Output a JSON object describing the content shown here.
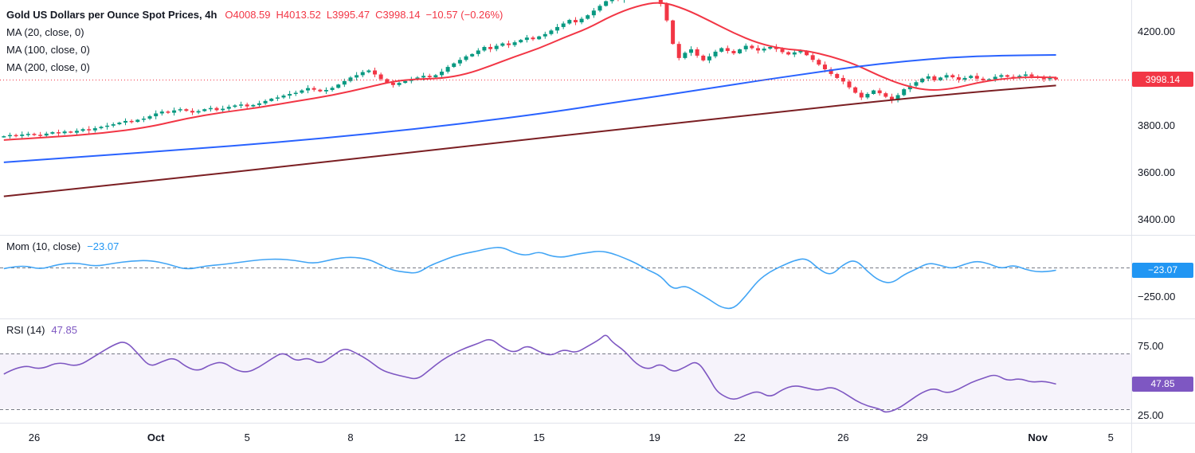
{
  "header": {
    "title": "Gold US Dollars per Ounce Spot Prices, 4h",
    "ohlc": {
      "open": "O4008.59",
      "high": "H4013.52",
      "low": "L3995.47",
      "close": "C3998.14",
      "change": "−10.57 (−0.26%)"
    },
    "ma_labels": [
      "MA (20, close, 0)",
      "MA (100, close, 0)",
      "MA (200, close, 0)"
    ]
  },
  "momentum_legend": {
    "label": "Mom (10, close)",
    "value": "−23.07"
  },
  "rsi_legend": {
    "label": "RSI (14)",
    "value": "47.85"
  },
  "badges": {
    "price": "3998.14",
    "momentum": "−23.07",
    "rsi": "47.85"
  },
  "colors": {
    "up": "#089981",
    "down": "#f23645",
    "ma20": "#f23645",
    "ma100": "#2962ff",
    "ma200": "#7b1f23",
    "mom": "#42a5f5",
    "rsi": "#7e57c2",
    "band_fill": "rgba(126,87,194,0.07)",
    "dashed": "#787b86",
    "separator": "#e0e3eb",
    "axis_text": "#131722",
    "last_price_line": "#f23645"
  },
  "time_axis": {
    "labels": [
      {
        "t": "26",
        "i": 5
      },
      {
        "t": "Oct",
        "i": 25,
        "strong": true
      },
      {
        "t": "5",
        "i": 40
      },
      {
        "t": "8",
        "i": 57
      },
      {
        "t": "12",
        "i": 75
      },
      {
        "t": "15",
        "i": 88
      },
      {
        "t": "19",
        "i": 107
      },
      {
        "t": "22",
        "i": 121
      },
      {
        "t": "26",
        "i": 138
      },
      {
        "t": "29",
        "i": 151
      },
      {
        "t": "Nov",
        "i": 170,
        "strong": true
      },
      {
        "t": "5",
        "i": 182
      }
    ]
  },
  "chart_data": [
    {
      "type": "candlestick",
      "panel": "price",
      "title": "Gold US Dollars per Ounce Spot Prices, 4h",
      "timeframe": "4h",
      "ohlc_last": {
        "o": 4008.59,
        "h": 4013.52,
        "l": 3995.47,
        "c": 3998.14,
        "change": -10.57,
        "change_pct": -0.26
      },
      "ylim": [
        3336,
        4336
      ],
      "y_ticks": [
        {
          "v": 4200,
          "label": "4200.00"
        },
        {
          "v": 3800,
          "label": "3800.00"
        },
        {
          "v": 3600,
          "label": "3600.00"
        },
        {
          "v": 3400,
          "label": "3400.00"
        }
      ],
      "last_price": 3998.14,
      "closes": [
        3756,
        3761,
        3757,
        3763,
        3766,
        3762,
        3759,
        3767,
        3773,
        3769,
        3776,
        3771,
        3779,
        3786,
        3781,
        3790,
        3796,
        3801,
        3807,
        3814,
        3821,
        3817,
        3826,
        3831,
        3841,
        3853,
        3861,
        3856,
        3866,
        3871,
        3864,
        3857,
        3863,
        3871,
        3876,
        3867,
        3873,
        3881,
        3887,
        3891,
        3883,
        3889,
        3896,
        3906,
        3916,
        3921,
        3929,
        3936,
        3941,
        3951,
        3961,
        3954,
        3947,
        3953,
        3962,
        3976,
        3991,
        4006,
        4016,
        4029,
        4036,
        4019,
        3999,
        3984,
        3974,
        3983,
        3991,
        3999,
        4006,
        4013,
        4007,
        4016,
        4031,
        4051,
        4066,
        4081,
        4096,
        4106,
        4121,
        4136,
        4127,
        4141,
        4151,
        4144,
        4156,
        4166,
        4176,
        4169,
        4181,
        4191,
        4206,
        4221,
        4236,
        4251,
        4241,
        4256,
        4271,
        4291,
        4311,
        4331,
        4346,
        4337,
        4351,
        4366,
        4376,
        4381,
        4359,
        4341,
        4319,
        4249,
        4149,
        4089,
        4111,
        4126,
        4099,
        4079,
        4096,
        4116,
        4131,
        4119,
        4109,
        4126,
        4141,
        4131,
        4121,
        4129,
        4136,
        4127,
        4114,
        4104,
        4113,
        4119,
        4101,
        4081,
        4061,
        4041,
        4021,
        4004,
        3989,
        3964,
        3941,
        3921,
        3936,
        3951,
        3939,
        3924,
        3909,
        3931,
        3956,
        3971,
        3986,
        4001,
        4011,
        3994,
        4006,
        4016,
        4007,
        3997,
        4004,
        4013,
        4001,
        3994,
        3999,
        4009,
        4016,
        4009,
        4004,
        4013,
        4019,
        4011,
        4004,
        3999,
        4006,
        3998.14
      ],
      "overlays": [
        {
          "name": "MA (20, close, 0)",
          "period": 20,
          "color_key": "ma20",
          "points": [
            [
              0,
              3740
            ],
            [
              8,
              3752
            ],
            [
              16,
              3768
            ],
            [
              24,
              3795
            ],
            [
              30,
              3832
            ],
            [
              36,
              3858
            ],
            [
              42,
              3878
            ],
            [
              48,
              3905
            ],
            [
              54,
              3930
            ],
            [
              60,
              3965
            ],
            [
              64,
              3990
            ],
            [
              68,
              4000
            ],
            [
              72,
              4002
            ],
            [
              76,
              4020
            ],
            [
              80,
              4055
            ],
            [
              84,
              4095
            ],
            [
              88,
              4130
            ],
            [
              92,
              4175
            ],
            [
              96,
              4215
            ],
            [
              100,
              4270
            ],
            [
              104,
              4310
            ],
            [
              108,
              4330
            ],
            [
              112,
              4298
            ],
            [
              116,
              4248
            ],
            [
              120,
              4195
            ],
            [
              124,
              4152
            ],
            [
              128,
              4128
            ],
            [
              132,
              4120
            ],
            [
              136,
              4096
            ],
            [
              140,
              4062
            ],
            [
              144,
              4012
            ],
            [
              148,
              3972
            ],
            [
              152,
              3950
            ],
            [
              156,
              3958
            ],
            [
              160,
              3984
            ],
            [
              164,
              4000
            ],
            [
              168,
              4008
            ],
            [
              173,
              4006
            ]
          ]
        },
        {
          "name": "MA (100, close, 0)",
          "period": 100,
          "color_key": "ma100",
          "points": [
            [
              0,
              3645
            ],
            [
              15,
              3672
            ],
            [
              30,
              3700
            ],
            [
              45,
              3730
            ],
            [
              60,
              3766
            ],
            [
              75,
              3808
            ],
            [
              90,
              3858
            ],
            [
              100,
              3898
            ],
            [
              108,
              3928
            ],
            [
              116,
              3960
            ],
            [
              124,
              3992
            ],
            [
              132,
              4022
            ],
            [
              140,
              4052
            ],
            [
              148,
              4075
            ],
            [
              156,
              4092
            ],
            [
              164,
              4100
            ],
            [
              173,
              4102
            ]
          ]
        },
        {
          "name": "MA (200, close, 0)",
          "period": 200,
          "color_key": "ma200",
          "points": [
            [
              0,
              3500
            ],
            [
              25,
              3568
            ],
            [
              50,
              3638
            ],
            [
              75,
              3710
            ],
            [
              100,
              3782
            ],
            [
              125,
              3852
            ],
            [
              145,
              3908
            ],
            [
              160,
              3945
            ],
            [
              173,
              3972
            ]
          ]
        }
      ]
    },
    {
      "type": "line",
      "panel": "momentum",
      "name": "Mom (10, close)",
      "value": -23.07,
      "color_key": "mom",
      "ylim": [
        -430,
        275
      ],
      "zero_line": 0,
      "y_ticks": [
        {
          "v": -250,
          "label": "−250.00"
        }
      ],
      "points": [
        [
          0,
          -10
        ],
        [
          3,
          22
        ],
        [
          6,
          -18
        ],
        [
          9,
          28
        ],
        [
          12,
          40
        ],
        [
          15,
          8
        ],
        [
          18,
          35
        ],
        [
          21,
          55
        ],
        [
          24,
          60
        ],
        [
          27,
          30
        ],
        [
          30,
          -20
        ],
        [
          33,
          12
        ],
        [
          36,
          25
        ],
        [
          39,
          45
        ],
        [
          42,
          65
        ],
        [
          45,
          72
        ],
        [
          48,
          60
        ],
        [
          51,
          30
        ],
        [
          54,
          70
        ],
        [
          57,
          90
        ],
        [
          60,
          70
        ],
        [
          62,
          20
        ],
        [
          64,
          -25
        ],
        [
          66,
          -40
        ],
        [
          68,
          -50
        ],
        [
          70,
          15
        ],
        [
          72,
          55
        ],
        [
          74,
          95
        ],
        [
          76,
          120
        ],
        [
          78,
          140
        ],
        [
          80,
          165
        ],
        [
          82,
          172
        ],
        [
          84,
          120
        ],
        [
          86,
          100
        ],
        [
          88,
          135
        ],
        [
          90,
          95
        ],
        [
          92,
          85
        ],
        [
          94,
          110
        ],
        [
          96,
          125
        ],
        [
          98,
          140
        ],
        [
          100,
          120
        ],
        [
          102,
          80
        ],
        [
          104,
          35
        ],
        [
          106,
          -25
        ],
        [
          108,
          -70
        ],
        [
          110,
          -190
        ],
        [
          112,
          -150
        ],
        [
          114,
          -210
        ],
        [
          116,
          -270
        ],
        [
          118,
          -340
        ],
        [
          120,
          -350
        ],
        [
          122,
          -240
        ],
        [
          124,
          -110
        ],
        [
          126,
          -35
        ],
        [
          128,
          15
        ],
        [
          130,
          60
        ],
        [
          132,
          80
        ],
        [
          134,
          -15
        ],
        [
          136,
          -70
        ],
        [
          138,
          25
        ],
        [
          140,
          70
        ],
        [
          142,
          -35
        ],
        [
          144,
          -115
        ],
        [
          146,
          -135
        ],
        [
          148,
          -60
        ],
        [
          150,
          -15
        ],
        [
          152,
          40
        ],
        [
          154,
          18
        ],
        [
          156,
          -12
        ],
        [
          158,
          28
        ],
        [
          160,
          55
        ],
        [
          162,
          32
        ],
        [
          164,
          -12
        ],
        [
          166,
          22
        ],
        [
          168,
          -18
        ],
        [
          170,
          -38
        ],
        [
          172,
          -32
        ],
        [
          173,
          -23.07
        ]
      ]
    },
    {
      "type": "line",
      "panel": "rsi",
      "name": "RSI (14)",
      "value": 47.85,
      "color_key": "rsi",
      "ylim": [
        20,
        95
      ],
      "band": [
        30,
        70
      ],
      "y_ticks": [
        {
          "v": 75,
          "label": "75.00"
        },
        {
          "v": 25,
          "label": "25.00"
        }
      ],
      "points": [
        [
          0,
          55
        ],
        [
          3,
          62
        ],
        [
          6,
          58
        ],
        [
          9,
          64
        ],
        [
          12,
          60
        ],
        [
          15,
          68
        ],
        [
          18,
          76
        ],
        [
          20,
          79
        ],
        [
          22,
          70
        ],
        [
          24,
          60
        ],
        [
          26,
          64
        ],
        [
          28,
          67
        ],
        [
          30,
          60
        ],
        [
          32,
          57
        ],
        [
          34,
          62
        ],
        [
          36,
          64
        ],
        [
          38,
          58
        ],
        [
          40,
          56
        ],
        [
          42,
          60
        ],
        [
          44,
          66
        ],
        [
          46,
          71
        ],
        [
          48,
          64
        ],
        [
          50,
          67
        ],
        [
          52,
          62
        ],
        [
          54,
          68
        ],
        [
          56,
          74
        ],
        [
          58,
          70
        ],
        [
          60,
          65
        ],
        [
          62,
          58
        ],
        [
          64,
          55
        ],
        [
          66,
          53
        ],
        [
          68,
          51
        ],
        [
          70,
          58
        ],
        [
          72,
          65
        ],
        [
          74,
          70
        ],
        [
          76,
          74
        ],
        [
          78,
          77
        ],
        [
          80,
          81
        ],
        [
          82,
          74
        ],
        [
          84,
          70
        ],
        [
          86,
          76
        ],
        [
          88,
          71
        ],
        [
          90,
          68
        ],
        [
          92,
          73
        ],
        [
          94,
          70
        ],
        [
          96,
          75
        ],
        [
          98,
          80
        ],
        [
          99,
          84
        ],
        [
          100,
          78
        ],
        [
          102,
          72
        ],
        [
          104,
          62
        ],
        [
          106,
          58
        ],
        [
          108,
          63
        ],
        [
          110,
          56
        ],
        [
          112,
          60
        ],
        [
          114,
          65
        ],
        [
          116,
          52
        ],
        [
          117,
          44
        ],
        [
          118,
          40
        ],
        [
          120,
          36
        ],
        [
          122,
          40
        ],
        [
          124,
          43
        ],
        [
          126,
          38
        ],
        [
          128,
          44
        ],
        [
          130,
          47
        ],
        [
          132,
          45
        ],
        [
          134,
          43
        ],
        [
          136,
          46
        ],
        [
          138,
          42
        ],
        [
          140,
          36
        ],
        [
          142,
          32
        ],
        [
          144,
          30
        ],
        [
          145,
          27
        ],
        [
          147,
          30
        ],
        [
          149,
          36
        ],
        [
          151,
          42
        ],
        [
          153,
          45
        ],
        [
          155,
          41
        ],
        [
          157,
          44
        ],
        [
          159,
          49
        ],
        [
          161,
          52
        ],
        [
          163,
          55
        ],
        [
          165,
          50
        ],
        [
          167,
          52
        ],
        [
          169,
          49
        ],
        [
          171,
          50
        ],
        [
          173,
          47.85
        ]
      ]
    }
  ]
}
